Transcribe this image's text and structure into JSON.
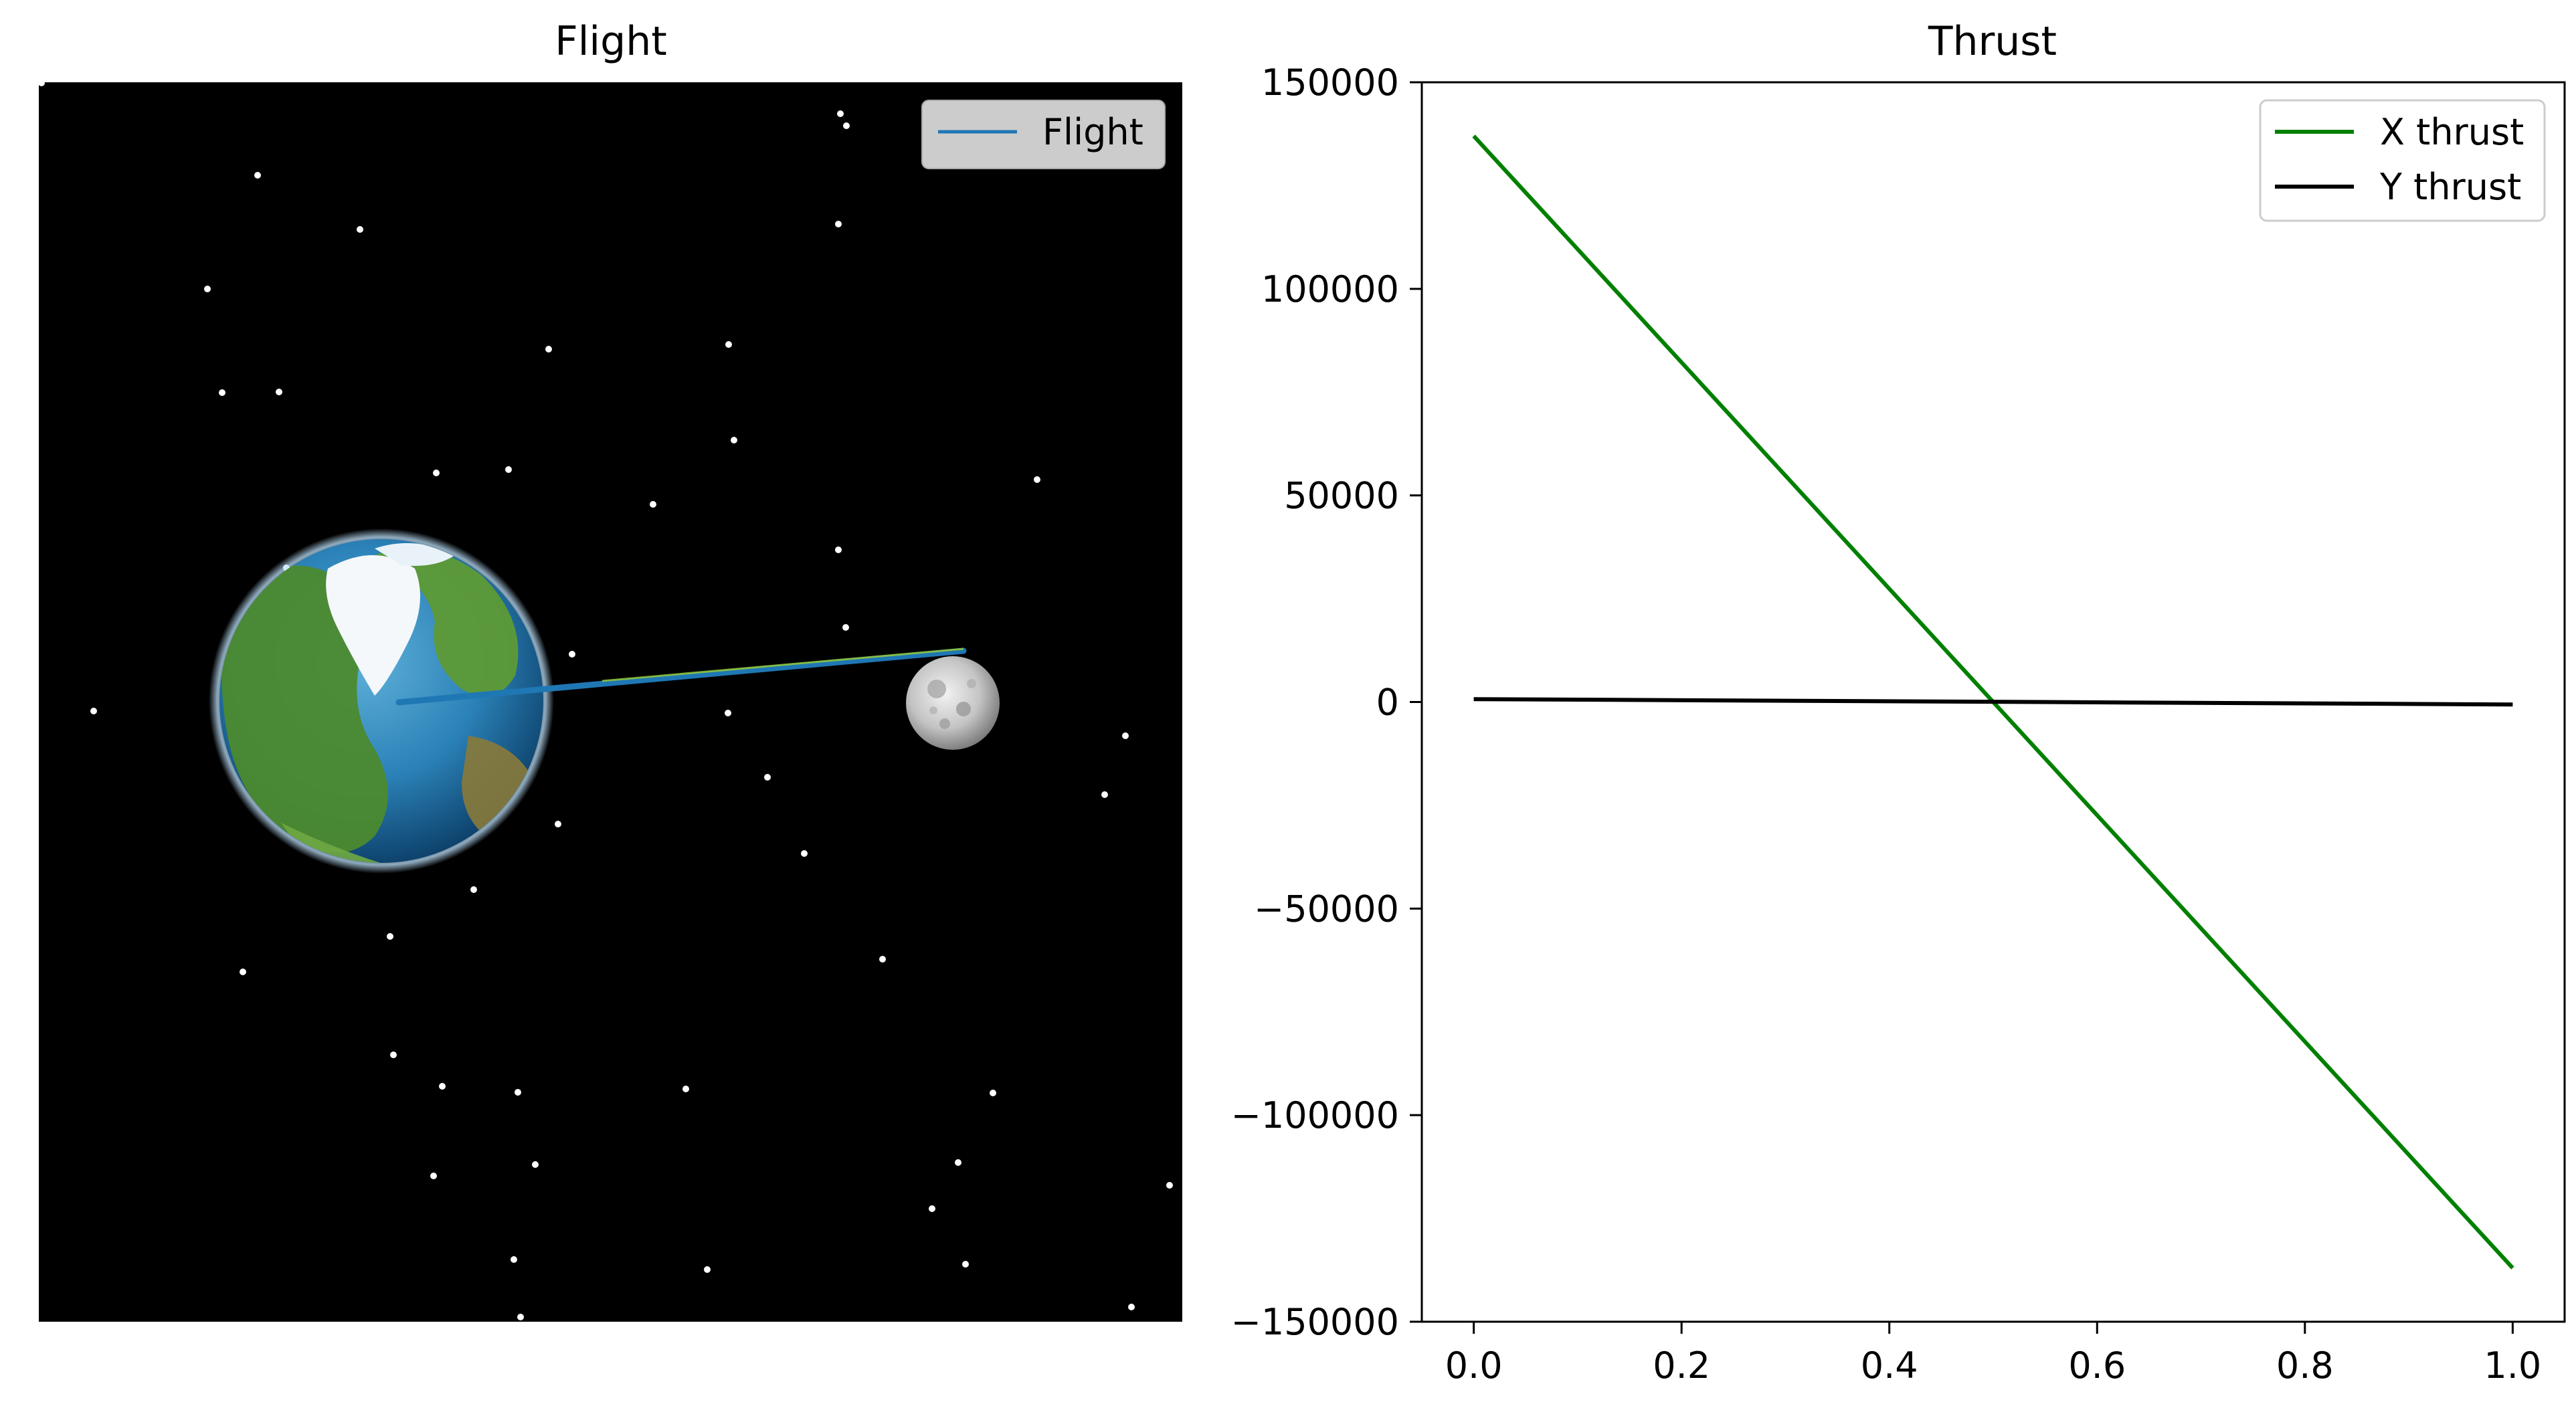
{
  "chart_data": [
    {
      "type": "line",
      "title": "Flight",
      "xlabel": "",
      "ylabel": "",
      "grid": false,
      "axis_visible": false,
      "legend_position": "top-right",
      "background": "#000000",
      "series": [
        {
          "name": "Flight",
          "color": "#1f77b4"
        }
      ],
      "scene": {
        "earth": "earth-globe",
        "moon": "moon",
        "stars": "white star dots"
      }
    },
    {
      "type": "line",
      "title": "Thrust",
      "xlabel": "",
      "ylabel": "",
      "grid": false,
      "legend_position": "top-right",
      "xlim": [
        -0.05,
        1.05
      ],
      "ylim": [
        -150000,
        150000
      ],
      "xticks": [
        0.0,
        0.2,
        0.4,
        0.6,
        0.8,
        1.0
      ],
      "xtick_labels": [
        "0.0",
        "0.2",
        "0.4",
        "0.6",
        "0.8",
        "1.0"
      ],
      "yticks": [
        150000,
        100000,
        50000,
        0,
        -50000,
        -100000,
        -150000
      ],
      "ytick_labels": [
        "150000",
        "100000",
        "50000",
        "0",
        "−50000",
        "−100000",
        "−150000"
      ],
      "series": [
        {
          "name": "X thrust",
          "color": "#008000",
          "x": [
            0.0,
            1.0
          ],
          "y": [
            137000,
            -137000
          ]
        },
        {
          "name": "Y thrust",
          "color": "#000000",
          "x": [
            0.0,
            1.0
          ],
          "y": [
            700,
            -600
          ]
        }
      ]
    }
  ]
}
